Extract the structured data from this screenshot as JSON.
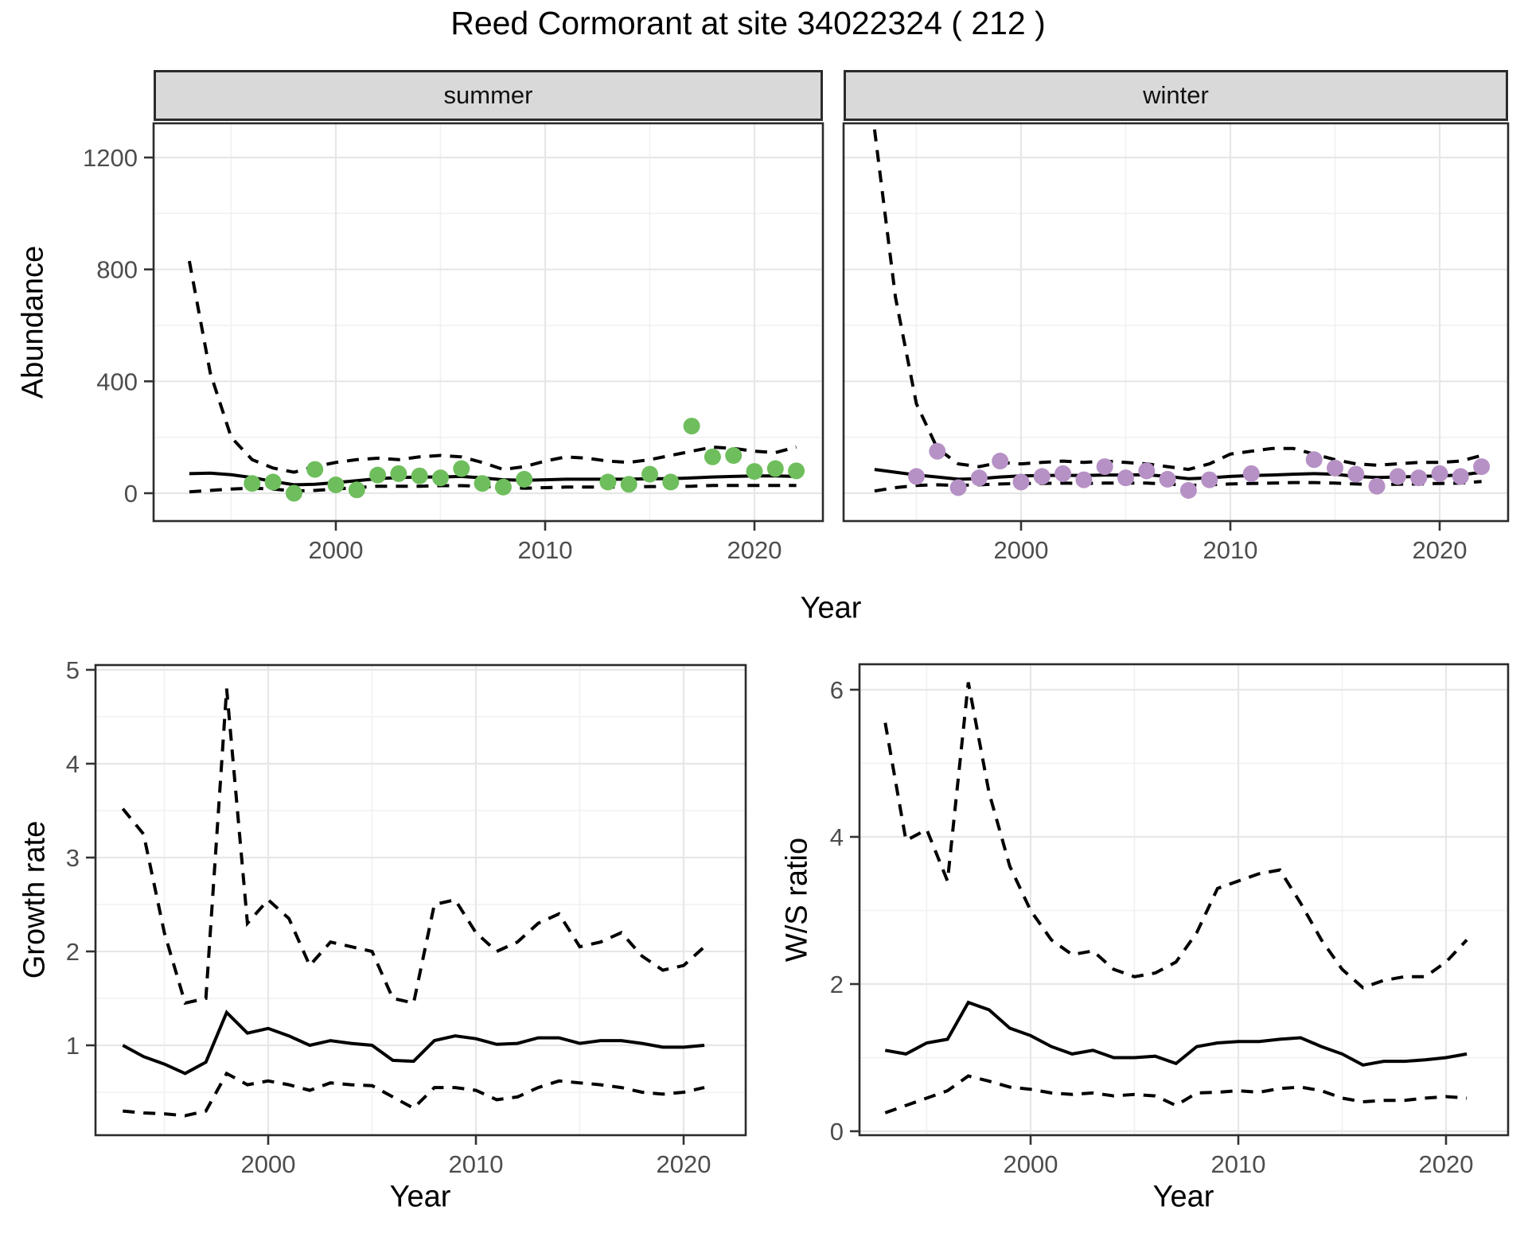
{
  "text": {
    "title": "Reed Cormorant at site 34022324 ( 212 )",
    "year_xlabel": "Year",
    "abundance_ylabel": "Abundance",
    "growth_ylabel": "Growth rate",
    "ws_ylabel": "W/S ratio",
    "facet_summer": "summer",
    "facet_winter": "winter"
  },
  "colors": {
    "summer_point": "#6FBE5D",
    "winter_point": "#B691C5",
    "line": "#000000",
    "strip_bg": "#D9D9D9",
    "panel_border": "#2b2b2b",
    "grid_major": "#E7E7E7",
    "grid_minor": "#F1F1F1",
    "tick_mark": "#333333",
    "tick_label": "#4D4D4D"
  },
  "chart_data": [
    {
      "type": "line",
      "facet": "summer",
      "xlabel": "Year",
      "ylabel": "Abundance",
      "xlim": [
        1991.3,
        2023.3
      ],
      "ylim": [
        -100,
        1322
      ],
      "x_ticks": [
        2000,
        2010,
        2020
      ],
      "x_minor": [
        1995,
        2005,
        2015
      ],
      "y_ticks": [
        0,
        400,
        800,
        1200
      ],
      "y_minor": [
        200,
        600,
        1000
      ],
      "series": [
        {
          "name": "fit_median",
          "style": "solid",
          "x": [
            1993,
            1994,
            1995,
            1996,
            1997,
            1998,
            1999,
            2000,
            2001,
            2002,
            2003,
            2004,
            2005,
            2006,
            2007,
            2008,
            2009,
            2010,
            2011,
            2012,
            2013,
            2014,
            2015,
            2016,
            2017,
            2018,
            2019,
            2020,
            2021,
            2022
          ],
          "y": [
            70,
            72,
            66,
            56,
            42,
            30,
            32,
            38,
            45,
            52,
            56,
            58,
            58,
            60,
            55,
            48,
            46,
            48,
            50,
            50,
            50,
            50,
            52,
            52,
            55,
            58,
            60,
            62,
            62,
            60
          ]
        },
        {
          "name": "upper_ci",
          "style": "dashed",
          "x": [
            1993,
            1994,
            1995,
            1996,
            1997,
            1998,
            1999,
            2000,
            2001,
            2002,
            2003,
            2004,
            2005,
            2006,
            2007,
            2008,
            2009,
            2010,
            2011,
            2012,
            2013,
            2014,
            2015,
            2016,
            2017,
            2018,
            2019,
            2020,
            2021,
            2022
          ],
          "y": [
            830,
            430,
            200,
            120,
            90,
            75,
            95,
            110,
            120,
            125,
            120,
            130,
            135,
            130,
            110,
            85,
            95,
            115,
            130,
            125,
            115,
            110,
            120,
            135,
            150,
            165,
            160,
            150,
            145,
            165
          ]
        },
        {
          "name": "lower_ci",
          "style": "dashed",
          "x": [
            1993,
            1994,
            1995,
            1996,
            1997,
            1998,
            1999,
            2000,
            2001,
            2002,
            2003,
            2004,
            2005,
            2006,
            2007,
            2008,
            2009,
            2010,
            2011,
            2012,
            2013,
            2014,
            2015,
            2016,
            2017,
            2018,
            2019,
            2020,
            2021,
            2022
          ],
          "y": [
            5,
            10,
            15,
            18,
            15,
            8,
            10,
            15,
            20,
            25,
            25,
            25,
            27,
            27,
            25,
            20,
            18,
            20,
            22,
            22,
            22,
            22,
            24,
            24,
            25,
            28,
            28,
            28,
            28,
            28
          ]
        },
        {
          "name": "observed_counts",
          "style": "points",
          "color": "#6FBE5D",
          "x": [
            1996,
            1997,
            1998,
            1999,
            2000,
            2001,
            2002,
            2003,
            2004,
            2005,
            2006,
            2007,
            2008,
            2009,
            2013,
            2014,
            2015,
            2016,
            2017,
            2018,
            2019,
            2020,
            2021,
            2022
          ],
          "y": [
            35,
            40,
            0,
            85,
            30,
            12,
            65,
            70,
            62,
            55,
            88,
            35,
            22,
            50,
            40,
            32,
            68,
            40,
            240,
            130,
            135,
            78,
            88,
            80
          ]
        }
      ]
    },
    {
      "type": "line",
      "facet": "winter",
      "xlabel": "Year",
      "ylabel": "Abundance",
      "xlim": [
        1991.5,
        2023.3
      ],
      "ylim": [
        -100,
        1322
      ],
      "x_ticks": [
        2000,
        2010,
        2020
      ],
      "x_minor": [
        1995,
        2005,
        2015
      ],
      "y_ticks": [
        0,
        400,
        800,
        1200
      ],
      "y_minor": [
        200,
        600,
        1000
      ],
      "series": [
        {
          "name": "fit_median",
          "style": "solid",
          "x": [
            1993,
            1994,
            1995,
            1996,
            1997,
            1998,
            1999,
            2000,
            2001,
            2002,
            2003,
            2004,
            2005,
            2006,
            2007,
            2008,
            2009,
            2010,
            2011,
            2012,
            2013,
            2014,
            2015,
            2016,
            2017,
            2018,
            2019,
            2020,
            2021,
            2022
          ],
          "y": [
            85,
            75,
            65,
            58,
            50,
            52,
            58,
            62,
            63,
            64,
            63,
            65,
            65,
            66,
            60,
            52,
            55,
            60,
            63,
            65,
            68,
            70,
            68,
            60,
            56,
            58,
            60,
            62,
            65,
            75
          ]
        },
        {
          "name": "upper_ci",
          "style": "dashed",
          "x": [
            1993,
            1994,
            1995,
            1996,
            1997,
            1998,
            1999,
            2000,
            2001,
            2002,
            2003,
            2004,
            2005,
            2006,
            2007,
            2008,
            2009,
            2010,
            2011,
            2012,
            2013,
            2014,
            2015,
            2016,
            2017,
            2018,
            2019,
            2020,
            2021,
            2022
          ],
          "y": [
            1300,
            700,
            320,
            160,
            105,
            95,
            110,
            105,
            110,
            115,
            110,
            115,
            110,
            105,
            95,
            85,
            105,
            140,
            150,
            160,
            160,
            140,
            120,
            105,
            100,
            105,
            110,
            110,
            115,
            135
          ]
        },
        {
          "name": "lower_ci",
          "style": "dashed",
          "x": [
            1993,
            1994,
            1995,
            1996,
            1997,
            1998,
            1999,
            2000,
            2001,
            2002,
            2003,
            2004,
            2005,
            2006,
            2007,
            2008,
            2009,
            2010,
            2011,
            2012,
            2013,
            2014,
            2015,
            2016,
            2017,
            2018,
            2019,
            2020,
            2021,
            2022
          ],
          "y": [
            8,
            20,
            28,
            30,
            28,
            30,
            33,
            35,
            35,
            36,
            35,
            36,
            36,
            36,
            33,
            28,
            30,
            33,
            35,
            36,
            38,
            38,
            36,
            33,
            30,
            32,
            33,
            35,
            36,
            42
          ]
        },
        {
          "name": "observed_counts",
          "style": "points",
          "color": "#B691C5",
          "x": [
            1995,
            1996,
            1997,
            1998,
            1999,
            2000,
            2001,
            2002,
            2003,
            2004,
            2005,
            2006,
            2007,
            2008,
            2009,
            2011,
            2014,
            2015,
            2016,
            2017,
            2018,
            2019,
            2020,
            2021,
            2022
          ],
          "y": [
            60,
            150,
            20,
            55,
            115,
            40,
            60,
            70,
            48,
            95,
            55,
            80,
            50,
            10,
            48,
            70,
            120,
            90,
            68,
            25,
            60,
            55,
            70,
            60,
            95
          ]
        }
      ]
    },
    {
      "type": "line",
      "facet": "",
      "xlabel": "Year",
      "ylabel": "Growth rate",
      "xlim": [
        1991.7,
        2023.0
      ],
      "ylim": [
        0.04,
        5.05
      ],
      "x_ticks": [
        2000,
        2010,
        2020
      ],
      "x_minor": [
        1995,
        2005,
        2015
      ],
      "y_ticks": [
        1,
        2,
        3,
        4,
        5
      ],
      "y_minor": [
        0.5,
        1.5,
        2.5,
        3.5,
        4.5
      ],
      "series": [
        {
          "name": "fit_median",
          "style": "solid",
          "x": [
            1993,
            1994,
            1995,
            1996,
            1997,
            1998,
            1999,
            2000,
            2001,
            2002,
            2003,
            2004,
            2005,
            2006,
            2007,
            2008,
            2009,
            2010,
            2011,
            2012,
            2013,
            2014,
            2015,
            2016,
            2017,
            2018,
            2019,
            2020,
            2021
          ],
          "y": [
            1.0,
            0.88,
            0.8,
            0.7,
            0.82,
            1.35,
            1.13,
            1.18,
            1.1,
            1.0,
            1.05,
            1.02,
            1.0,
            0.84,
            0.83,
            1.05,
            1.1,
            1.07,
            1.01,
            1.02,
            1.08,
            1.08,
            1.02,
            1.05,
            1.05,
            1.02,
            0.98,
            0.98,
            1.0
          ]
        },
        {
          "name": "upper_ci",
          "style": "dashed",
          "x": [
            1993,
            1994,
            1995,
            1996,
            1997,
            1998,
            1999,
            2000,
            2001,
            2002,
            2003,
            2004,
            2005,
            2006,
            2007,
            2008,
            2009,
            2010,
            2011,
            2012,
            2013,
            2014,
            2015,
            2016,
            2017,
            2018,
            2019,
            2020,
            2021
          ],
          "y": [
            3.52,
            3.25,
            2.2,
            1.45,
            1.5,
            4.8,
            2.3,
            2.55,
            2.35,
            1.85,
            2.1,
            2.05,
            2.0,
            1.5,
            1.45,
            2.5,
            2.55,
            2.2,
            2.0,
            2.1,
            2.3,
            2.4,
            2.05,
            2.1,
            2.2,
            1.95,
            1.8,
            1.85,
            2.05
          ]
        },
        {
          "name": "lower_ci",
          "style": "dashed",
          "x": [
            1993,
            1994,
            1995,
            1996,
            1997,
            1998,
            1999,
            2000,
            2001,
            2002,
            2003,
            2004,
            2005,
            2006,
            2007,
            2008,
            2009,
            2010,
            2011,
            2012,
            2013,
            2014,
            2015,
            2016,
            2017,
            2018,
            2019,
            2020,
            2021
          ],
          "y": [
            0.3,
            0.28,
            0.27,
            0.25,
            0.3,
            0.7,
            0.58,
            0.62,
            0.58,
            0.52,
            0.6,
            0.58,
            0.57,
            0.45,
            0.33,
            0.55,
            0.55,
            0.52,
            0.42,
            0.45,
            0.55,
            0.62,
            0.6,
            0.58,
            0.55,
            0.5,
            0.48,
            0.5,
            0.55
          ]
        }
      ]
    },
    {
      "type": "line",
      "facet": "",
      "xlabel": "Year",
      "ylabel": "W/S ratio",
      "xlim": [
        1991.8,
        2023.0
      ],
      "ylim": [
        -0.05,
        6.35
      ],
      "x_ticks": [
        2000,
        2010,
        2020
      ],
      "x_minor": [
        1995,
        2005,
        2015
      ],
      "y_ticks": [
        0,
        2,
        4,
        6
      ],
      "y_minor": [
        1,
        3,
        5
      ],
      "series": [
        {
          "name": "fit_median",
          "style": "solid",
          "x": [
            1993,
            1994,
            1995,
            1996,
            1997,
            1998,
            1999,
            2000,
            2001,
            2002,
            2003,
            2004,
            2005,
            2006,
            2007,
            2008,
            2009,
            2010,
            2011,
            2012,
            2013,
            2014,
            2015,
            2016,
            2017,
            2018,
            2019,
            2020,
            2021
          ],
          "y": [
            1.1,
            1.05,
            1.2,
            1.25,
            1.75,
            1.65,
            1.4,
            1.3,
            1.15,
            1.05,
            1.1,
            1.0,
            1.0,
            1.02,
            0.92,
            1.15,
            1.2,
            1.22,
            1.22,
            1.25,
            1.27,
            1.15,
            1.05,
            0.9,
            0.95,
            0.95,
            0.97,
            1.0,
            1.05
          ]
        },
        {
          "name": "upper_ci",
          "style": "dashed",
          "x": [
            1993,
            1994,
            1995,
            1996,
            1997,
            1998,
            1999,
            2000,
            2001,
            2002,
            2003,
            2004,
            2005,
            2006,
            2007,
            2008,
            2009,
            2010,
            2011,
            2012,
            2013,
            2014,
            2015,
            2016,
            2017,
            2018,
            2019,
            2020,
            2021
          ],
          "y": [
            5.55,
            3.95,
            4.1,
            3.4,
            6.1,
            4.6,
            3.6,
            3.0,
            2.6,
            2.4,
            2.45,
            2.2,
            2.1,
            2.15,
            2.3,
            2.7,
            3.3,
            3.4,
            3.5,
            3.55,
            3.1,
            2.6,
            2.2,
            1.95,
            2.05,
            2.1,
            2.1,
            2.3,
            2.6
          ]
        },
        {
          "name": "lower_ci",
          "style": "dashed",
          "x": [
            1993,
            1994,
            1995,
            1996,
            1997,
            1998,
            1999,
            2000,
            2001,
            2002,
            2003,
            2004,
            2005,
            2006,
            2007,
            2008,
            2009,
            2010,
            2011,
            2012,
            2013,
            2014,
            2015,
            2016,
            2017,
            2018,
            2019,
            2020,
            2021
          ],
          "y": [
            0.25,
            0.35,
            0.45,
            0.55,
            0.75,
            0.68,
            0.6,
            0.57,
            0.52,
            0.5,
            0.52,
            0.48,
            0.5,
            0.48,
            0.35,
            0.52,
            0.53,
            0.55,
            0.53,
            0.58,
            0.6,
            0.55,
            0.45,
            0.4,
            0.42,
            0.42,
            0.45,
            0.47,
            0.45
          ]
        }
      ]
    }
  ]
}
